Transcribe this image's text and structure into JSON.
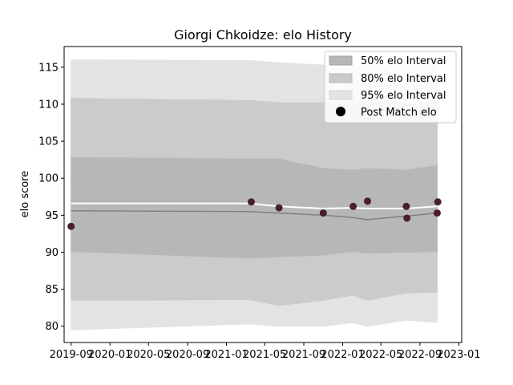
{
  "chart_data": {
    "type": "area",
    "title": "Giorgi Chkoidze: elo History",
    "xlabel": "",
    "ylabel": "elo score",
    "x_range": [
      "2019-08-10",
      "2023-01-10"
    ],
    "ylim": [
      77.8,
      117.8
    ],
    "y_ticks": [
      80,
      85,
      90,
      95,
      100,
      105,
      110,
      115
    ],
    "x_ticks": [
      {
        "date": "2019-09-01",
        "label": "2019-09"
      },
      {
        "date": "2020-01-01",
        "label": "2020-01"
      },
      {
        "date": "2020-05-01",
        "label": "2020-05"
      },
      {
        "date": "2020-09-01",
        "label": "2020-09"
      },
      {
        "date": "2021-01-01",
        "label": "2021-01"
      },
      {
        "date": "2021-05-01",
        "label": "2021-05"
      },
      {
        "date": "2021-09-01",
        "label": "2021-09"
      },
      {
        "date": "2022-01-01",
        "label": "2022-01"
      },
      {
        "date": "2022-05-01",
        "label": "2022-05"
      },
      {
        "date": "2022-09-01",
        "label": "2022-09"
      },
      {
        "date": "2023-01-01",
        "label": "2023-01"
      }
    ],
    "grid": false,
    "legend_position": "top-right",
    "band_dates": [
      "2019-09-01",
      "2021-03-15",
      "2021-06-15",
      "2021-11-01",
      "2022-02-01",
      "2022-03-20",
      "2022-07-20",
      "2022-10-25"
    ],
    "bands": [
      {
        "name": "95% elo Interval",
        "color": "#e3e3e3",
        "upper": [
          116.0,
          115.9,
          115.6,
          115.3,
          115.0,
          115.1,
          115.2,
          115.3
        ],
        "lower": [
          79.5,
          80.3,
          80.0,
          80.0,
          80.5,
          80.0,
          80.8,
          80.5
        ]
      },
      {
        "name": "80% elo Interval",
        "color": "#cbcbcb",
        "upper": [
          110.8,
          110.5,
          110.2,
          110.2,
          110.1,
          110.1,
          110.2,
          110.2
        ],
        "lower": [
          83.5,
          83.6,
          82.8,
          83.5,
          84.2,
          83.5,
          84.5,
          84.6
        ]
      },
      {
        "name": "50% elo Interval",
        "color": "#b7b7b7",
        "upper": [
          102.8,
          102.6,
          102.6,
          101.3,
          101.1,
          101.3,
          101.1,
          101.7
        ],
        "lower": [
          90.1,
          89.2,
          89.4,
          89.6,
          90.1,
          89.9,
          90.0,
          90.1
        ]
      }
    ],
    "series": [
      {
        "color": "#ffffff",
        "x": [
          "2019-09-01",
          "2021-03-15",
          "2021-06-15",
          "2021-11-01",
          "2022-02-01",
          "2022-03-20",
          "2022-07-20",
          "2022-10-25"
        ],
        "y": [
          96.6,
          96.6,
          96.2,
          95.9,
          96.0,
          95.9,
          95.9,
          96.2
        ]
      },
      {
        "color": "#808080",
        "x": [
          "2019-09-01",
          "2021-03-15",
          "2021-06-15",
          "2021-11-01",
          "2022-02-01",
          "2022-03-20",
          "2022-07-20",
          "2022-10-25"
        ],
        "y": [
          95.6,
          95.5,
          95.3,
          95.0,
          94.7,
          94.4,
          94.9,
          95.3
        ]
      }
    ],
    "points": {
      "name": "Post Match elo",
      "color": "#4a1f2b",
      "x": [
        "2019-09-01",
        "2021-03-20",
        "2021-06-15",
        "2021-11-01",
        "2022-02-03",
        "2022-03-20",
        "2022-07-20",
        "2022-07-22",
        "2022-10-25",
        "2022-10-27"
      ],
      "y": [
        93.5,
        96.8,
        96.0,
        95.3,
        96.2,
        96.9,
        96.2,
        94.6,
        95.3,
        96.8
      ]
    },
    "legend_entries": [
      "50% elo Interval",
      "80% elo Interval",
      "95% elo Interval",
      "Post Match elo"
    ]
  }
}
